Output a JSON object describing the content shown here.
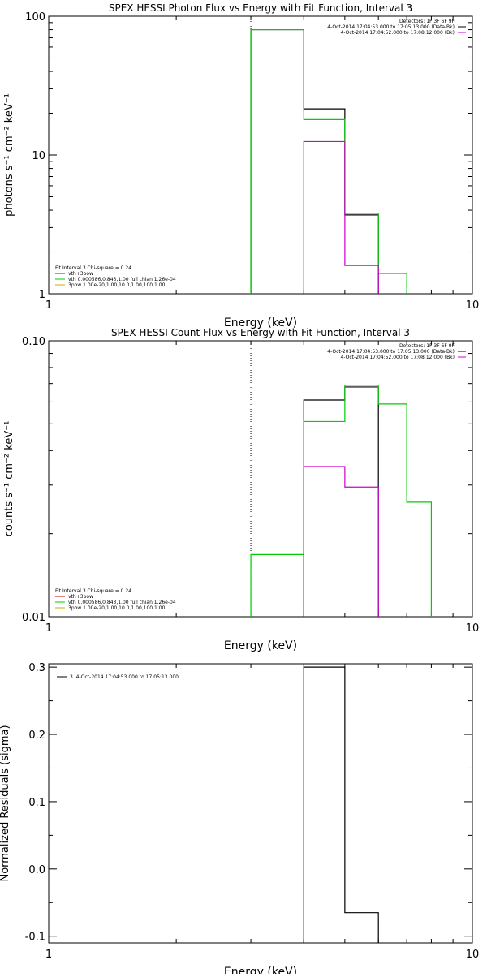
{
  "chart_data": [
    {
      "type": "line",
      "title": "SPEX HESSI Photon Flux vs Energy with Fit Function, Interval 3",
      "xlabel": "Energy (keV)",
      "ylabel": "photons s⁻¹ cm⁻² keV⁻¹",
      "xscale": "log",
      "yscale": "log",
      "xlim": [
        1,
        10
      ],
      "ylim": [
        1,
        100
      ],
      "xticks": [
        "1",
        "10"
      ],
      "yticks": [
        {
          "v": 1,
          "label": "1"
        },
        {
          "v": 10,
          "label": "10"
        },
        {
          "v": 100,
          "label": "100"
        }
      ],
      "vline": 3,
      "legend_tr": [
        {
          "text": "Detectors: 1F 3F 6F 9F",
          "color": ""
        },
        {
          "text": "4-Oct-2014 17:04:53.000 to 17:05:13.000 (Data-Bk)",
          "color": "#000000"
        },
        {
          "text": "4-Oct-2014 17:04:52.000 to 17:08:12.000 (Bk)",
          "color": "#cc00cc"
        }
      ],
      "legend_bl": [
        {
          "text": "Fit Interval 3   Chi-square = 0.24",
          "color": ""
        },
        {
          "text": "vth+3pow",
          "color": "#cc0000"
        },
        {
          "text": "vth 0.000586,0.843,1.00  full chian 1.26e-04",
          "color": "#00cc00"
        },
        {
          "text": "3pow 1.00e-20,1.00,10.0,1.00,100,1.00",
          "color": "#ccaa00"
        }
      ],
      "series": [
        {
          "color": "#000000",
          "steps": [
            [
              3,
              4,
              80
            ],
            [
              4,
              5,
              21.5
            ],
            [
              5,
              6,
              3.7
            ]
          ]
        },
        {
          "color": "#00cc00",
          "steps": [
            [
              3,
              4,
              80
            ],
            [
              4,
              5,
              18
            ],
            [
              5,
              6,
              3.8
            ],
            [
              6,
              7,
              1.4
            ]
          ]
        },
        {
          "color": "#cc00cc",
          "steps": [
            [
              4,
              5,
              12.5
            ],
            [
              5,
              6,
              1.6
            ]
          ]
        }
      ]
    },
    {
      "type": "line",
      "title": "SPEX HESSI Count Flux vs Energy with Fit Function, Interval 3",
      "xlabel": "Energy (keV)",
      "ylabel": "counts s⁻¹ cm⁻² keV⁻¹",
      "xscale": "log",
      "yscale": "log",
      "xlim": [
        1,
        10
      ],
      "ylim": [
        0.01,
        0.1
      ],
      "xticks": [
        "1",
        "10"
      ],
      "yticks": [
        {
          "v": 0.01,
          "label": "0.01"
        },
        {
          "v": 0.1,
          "label": "0.10"
        }
      ],
      "vline": 3,
      "legend_tr": [
        {
          "text": "Detectors: 1F 3F 6F 9F",
          "color": ""
        },
        {
          "text": "4-Oct-2014 17:04:53.000 to 17:05:13.000 (Data-Bk)",
          "color": "#000000"
        },
        {
          "text": "4-Oct-2014 17:04:52.000 to 17:08:12.000 (Bk)",
          "color": "#cc00cc"
        }
      ],
      "legend_bl": [
        {
          "text": "Fit Interval 3   Chi-square = 0.24",
          "color": ""
        },
        {
          "text": "vth+3pow",
          "color": "#cc0000"
        },
        {
          "text": "vth 0.000586,0.843,1.00  full chian 1.26e-04",
          "color": "#00cc00"
        },
        {
          "text": "3pow 1.00e-20,1.00,10.0,1.00,100,1.00",
          "color": "#ccaa00"
        }
      ],
      "series": [
        {
          "color": "#000000",
          "steps": [
            [
              4,
              5,
              0.061
            ],
            [
              5,
              6,
              0.068
            ]
          ]
        },
        {
          "color": "#00cc00",
          "steps": [
            [
              3,
              4,
              0.0168
            ],
            [
              4,
              5,
              0.051
            ],
            [
              5,
              6,
              0.069
            ],
            [
              6,
              7,
              0.059
            ],
            [
              7,
              8,
              0.026
            ]
          ]
        },
        {
          "color": "#cc00cc",
          "steps": [
            [
              4,
              5,
              0.035
            ],
            [
              5,
              6,
              0.0295
            ]
          ]
        }
      ]
    },
    {
      "type": "line",
      "title": "",
      "xlabel": "Energy (keV)",
      "ylabel": "Normalized Residuals (sigma)",
      "xscale": "log",
      "yscale": "linear",
      "xlim": [
        1,
        10
      ],
      "ylim": [
        -0.11,
        0.305
      ],
      "xticks": [
        "1",
        "10"
      ],
      "yticks": [
        {
          "v": -0.1,
          "label": "-0.1"
        },
        {
          "v": 0.0,
          "label": "0.0"
        },
        {
          "v": 0.1,
          "label": "0.1"
        },
        {
          "v": 0.2,
          "label": "0.2"
        },
        {
          "v": 0.3,
          "label": "0.3"
        }
      ],
      "vline": null,
      "legend_tl": [
        {
          "text": "3.  4-Oct-2014 17:04:53.000 to 17:05:13.000",
          "color": "#000000"
        }
      ],
      "series": [
        {
          "color": "#000000",
          "steps": [
            [
              4,
              5,
              0.3
            ],
            [
              5,
              6,
              -0.065
            ]
          ]
        }
      ]
    }
  ]
}
